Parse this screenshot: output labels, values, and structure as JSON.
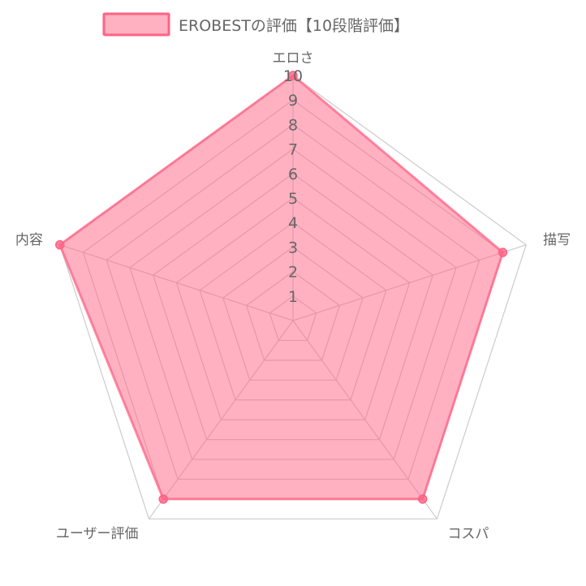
{
  "chart_data": {
    "type": "radar",
    "legend": {
      "placement": "top-center",
      "series_label": "EROBESTの評価【10段階評価】"
    },
    "axes": [
      "エロさ",
      "描写",
      "コスパ",
      "ユーザー評価",
      "内容"
    ],
    "range": [
      0,
      10
    ],
    "ticks": [
      "1",
      "2",
      "3",
      "4",
      "5",
      "6",
      "7",
      "8",
      "9",
      "10"
    ],
    "series": [
      {
        "name": "EROBESTの評価【10段階評価】",
        "values": [
          10,
          9,
          9,
          9,
          10
        ]
      }
    ],
    "colors": {
      "fill": "#ff6384",
      "fill_opacity": 0.5,
      "stroke": "#ff6384",
      "grid": "#cccccc",
      "text": "#666666"
    }
  }
}
